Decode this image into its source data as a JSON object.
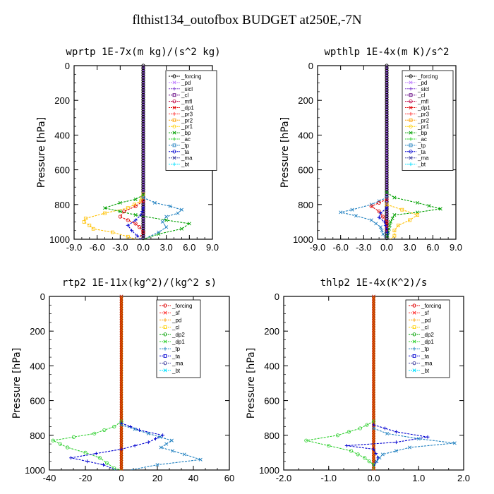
{
  "title": "flthist134_outofbox  BUDGET at250E,-7N",
  "chart_data": [
    {
      "type": "line",
      "title": "wprtp  1E-7x(m kg)/(s^2 kg)",
      "ylabel": "Pressure [hPa]",
      "xlim": [
        -9,
        9
      ],
      "ylim": [
        1000,
        0
      ],
      "xticks": [
        "-9.0",
        "-6.0",
        "-3.0",
        "0.0",
        "3.0",
        "6.0",
        "9.0"
      ],
      "yticks": [
        "0",
        "200",
        "400",
        "600",
        "800",
        "1000"
      ],
      "legend_entries": [
        "_forcing",
        "_pd",
        "_sicl",
        "_cl",
        "_mfl",
        "_dp1",
        "_pr3",
        "_pr2",
        "_pr1",
        "_bp",
        "_ac",
        "_tp",
        "_ta",
        "_ma",
        "_bt"
      ],
      "series": [
        {
          "name": "_pr2",
          "color": "#ffc000",
          "marker": "square",
          "points": [
            [
              0,
              740
            ],
            [
              -0.3,
              780
            ],
            [
              -2,
              820
            ],
            [
              -5,
              850
            ],
            [
              -7.5,
              880
            ],
            [
              -7.7,
              900
            ],
            [
              -7,
              920
            ],
            [
              -6.5,
              940
            ],
            [
              -4,
              960
            ],
            [
              -2,
              985
            ],
            [
              -1,
              1000
            ]
          ]
        },
        {
          "name": "_bp",
          "color": "#00a000",
          "marker": "x",
          "points": [
            [
              0,
              745
            ],
            [
              -1,
              770
            ],
            [
              -3,
              790
            ],
            [
              -5,
              820
            ],
            [
              -3,
              840
            ],
            [
              -1,
              860
            ],
            [
              3,
              890
            ],
            [
              6,
              910
            ],
            [
              5,
              940
            ],
            [
              2,
              970
            ],
            [
              0,
              1000
            ]
          ]
        },
        {
          "name": "_tp",
          "color": "#2080c0",
          "marker": "x",
          "points": [
            [
              0,
              760
            ],
            [
              1.5,
              790
            ],
            [
              3.5,
              810
            ],
            [
              5,
              830
            ],
            [
              4.5,
              850
            ],
            [
              3,
              870
            ],
            [
              2.5,
              900
            ],
            [
              3,
              930
            ],
            [
              2,
              960
            ],
            [
              0.5,
              990
            ]
          ]
        },
        {
          "name": "_dp1",
          "color": "#e00000",
          "marker": "circle",
          "points": [
            [
              0,
              780
            ],
            [
              -1,
              810
            ],
            [
              -2.5,
              840
            ],
            [
              -3,
              870
            ],
            [
              -2,
              890
            ],
            [
              -1,
              910
            ],
            [
              -0.5,
              930
            ],
            [
              0,
              960
            ],
            [
              -0.5,
              990
            ]
          ]
        },
        {
          "name": "_ta",
          "color": "#0000d0",
          "marker": "plus",
          "points": [
            [
              0,
              820
            ],
            [
              -0.3,
              860
            ],
            [
              -1,
              890
            ],
            [
              -2,
              920
            ],
            [
              -1.5,
              950
            ],
            [
              -0.8,
              980
            ],
            [
              -0.3,
              1000
            ]
          ]
        }
      ]
    },
    {
      "type": "line",
      "title": "wpthlp  1E-4x(m K)/s^2",
      "ylabel": "Pressure [hPa]",
      "xlim": [
        -9,
        9
      ],
      "ylim": [
        1000,
        0
      ],
      "xticks": [
        "-9.0",
        "-6.0",
        "-3.0",
        "0.0",
        "3.0",
        "6.0",
        "9.0"
      ],
      "yticks": [
        "0",
        "200",
        "400",
        "600",
        "800",
        "1000"
      ],
      "legend_entries": [
        "_forcing",
        "_pd",
        "_sicl",
        "_cl",
        "_mfl",
        "_dp1",
        "_pr3",
        "_pr2",
        "_pr1",
        "_bp",
        "_ac",
        "_tp",
        "_ta",
        "_ma",
        "_bt"
      ],
      "series": [
        {
          "name": "_bp",
          "color": "#00a000",
          "marker": "x",
          "points": [
            [
              0,
              730
            ],
            [
              1,
              760
            ],
            [
              4,
              790
            ],
            [
              7,
              825
            ],
            [
              4,
              845
            ],
            [
              1,
              860
            ],
            [
              0.5,
              900
            ],
            [
              0,
              1000
            ]
          ]
        },
        {
          "name": "_tp",
          "color": "#2080c0",
          "marker": "x",
          "points": [
            [
              0,
              760
            ],
            [
              -2,
              800
            ],
            [
              -4.5,
              830
            ],
            [
              -6,
              845
            ],
            [
              -4,
              865
            ],
            [
              -2,
              890
            ],
            [
              -0.8,
              930
            ],
            [
              -0.3,
              990
            ]
          ]
        },
        {
          "name": "_pr2",
          "color": "#ffc000",
          "marker": "square",
          "points": [
            [
              0,
              800
            ],
            [
              2,
              830
            ],
            [
              4,
              860
            ],
            [
              3,
              890
            ],
            [
              1.5,
              920
            ],
            [
              1,
              950
            ],
            [
              1,
              980
            ],
            [
              0.5,
              1000
            ]
          ]
        },
        {
          "name": "_dp1",
          "color": "#e00000",
          "marker": "circle",
          "points": [
            [
              0,
              770
            ],
            [
              -1,
              790
            ],
            [
              -2,
              810
            ],
            [
              -1,
              840
            ],
            [
              -0.5,
              870
            ],
            [
              0,
              900
            ],
            [
              0,
              960
            ]
          ]
        },
        {
          "name": "_ta",
          "color": "#0000d0",
          "marker": "plus",
          "points": [
            [
              0,
              820
            ],
            [
              -0.8,
              850
            ],
            [
              -1,
              875
            ],
            [
              -0.3,
              900
            ],
            [
              0,
              940
            ],
            [
              0.2,
              980
            ]
          ]
        }
      ]
    },
    {
      "type": "line",
      "title": "rtp2  1E-11x(kg^2)/(kg^2 s)",
      "ylabel": "Pressure [hPa]",
      "xlim": [
        -40,
        60
      ],
      "ylim": [
        1000,
        0
      ],
      "xticks": [
        "-40",
        "-20",
        "0",
        "20",
        "40",
        "60"
      ],
      "yticks": [
        "0",
        "200",
        "400",
        "600",
        "800",
        "1000"
      ],
      "legend_entries": [
        "_forcing",
        "_sf",
        "_pd",
        "_cl",
        "_dp2",
        "_dp1",
        "_tp",
        "_ta",
        "_ma",
        "_bt"
      ],
      "series": [
        {
          "name": "_dp1",
          "color": "#30d030",
          "marker": "circle",
          "points": [
            [
              0,
              720
            ],
            [
              -4,
              750
            ],
            [
              -15,
              790
            ],
            [
              -38,
              830
            ],
            [
              -30,
              870
            ],
            [
              -20,
              900
            ],
            [
              -12,
              930
            ],
            [
              -8,
              960
            ],
            [
              -4,
              990
            ],
            [
              0,
              1000
            ]
          ]
        },
        {
          "name": "_ta",
          "color": "#0000d0",
          "marker": "plus",
          "points": [
            [
              0,
              730
            ],
            [
              10,
              770
            ],
            [
              23,
              800
            ],
            [
              15,
              840
            ],
            [
              0,
              880
            ],
            [
              -28,
              930
            ],
            [
              -10,
              970
            ],
            [
              -3,
              1000
            ]
          ]
        },
        {
          "name": "_tp",
          "color": "#2080c0",
          "marker": "x",
          "points": [
            [
              0,
              740
            ],
            [
              15,
              790
            ],
            [
              28,
              830
            ],
            [
              22,
              870
            ],
            [
              35,
              910
            ],
            [
              44,
              940
            ],
            [
              20,
              970
            ],
            [
              5,
              1000
            ]
          ]
        }
      ]
    },
    {
      "type": "line",
      "title": "thlp2  1E-4x(K^2)/s",
      "ylabel": "Pressure [hPa]",
      "xlim": [
        -2,
        2
      ],
      "ylim": [
        1000,
        0
      ],
      "xticks": [
        "-2.0",
        "-1.0",
        "0.0",
        "1.0",
        "2.0"
      ],
      "yticks": [
        "0",
        "200",
        "400",
        "600",
        "800",
        "1000"
      ],
      "legend_entries": [
        "_forcing",
        "_sf",
        "_pd",
        "_cl",
        "_dp2",
        "_dp1",
        "_tp",
        "_ta",
        "_ma",
        "_bt"
      ],
      "series": [
        {
          "name": "_dp1",
          "color": "#30d030",
          "marker": "circle",
          "points": [
            [
              0,
              720
            ],
            [
              -0.3,
              760
            ],
            [
              -0.8,
              800
            ],
            [
              -1.5,
              830
            ],
            [
              -1,
              860
            ],
            [
              -0.5,
              890
            ],
            [
              -0.2,
              930
            ],
            [
              0,
              970
            ],
            [
              0,
              1000
            ]
          ]
        },
        {
          "name": "_ta",
          "color": "#0000d0",
          "marker": "plus",
          "points": [
            [
              0,
              740
            ],
            [
              0.5,
              780
            ],
            [
              1.2,
              810
            ],
            [
              0.5,
              840
            ],
            [
              -0.6,
              860
            ],
            [
              0,
              880
            ],
            [
              0.1,
              930
            ],
            [
              0,
              980
            ]
          ]
        },
        {
          "name": "_tp",
          "color": "#2080c0",
          "marker": "x",
          "points": [
            [
              0,
              760
            ],
            [
              0.3,
              790
            ],
            [
              1,
              820
            ],
            [
              1.8,
              845
            ],
            [
              0.8,
              870
            ],
            [
              0.2,
              910
            ],
            [
              0,
              970
            ]
          ]
        }
      ]
    }
  ]
}
